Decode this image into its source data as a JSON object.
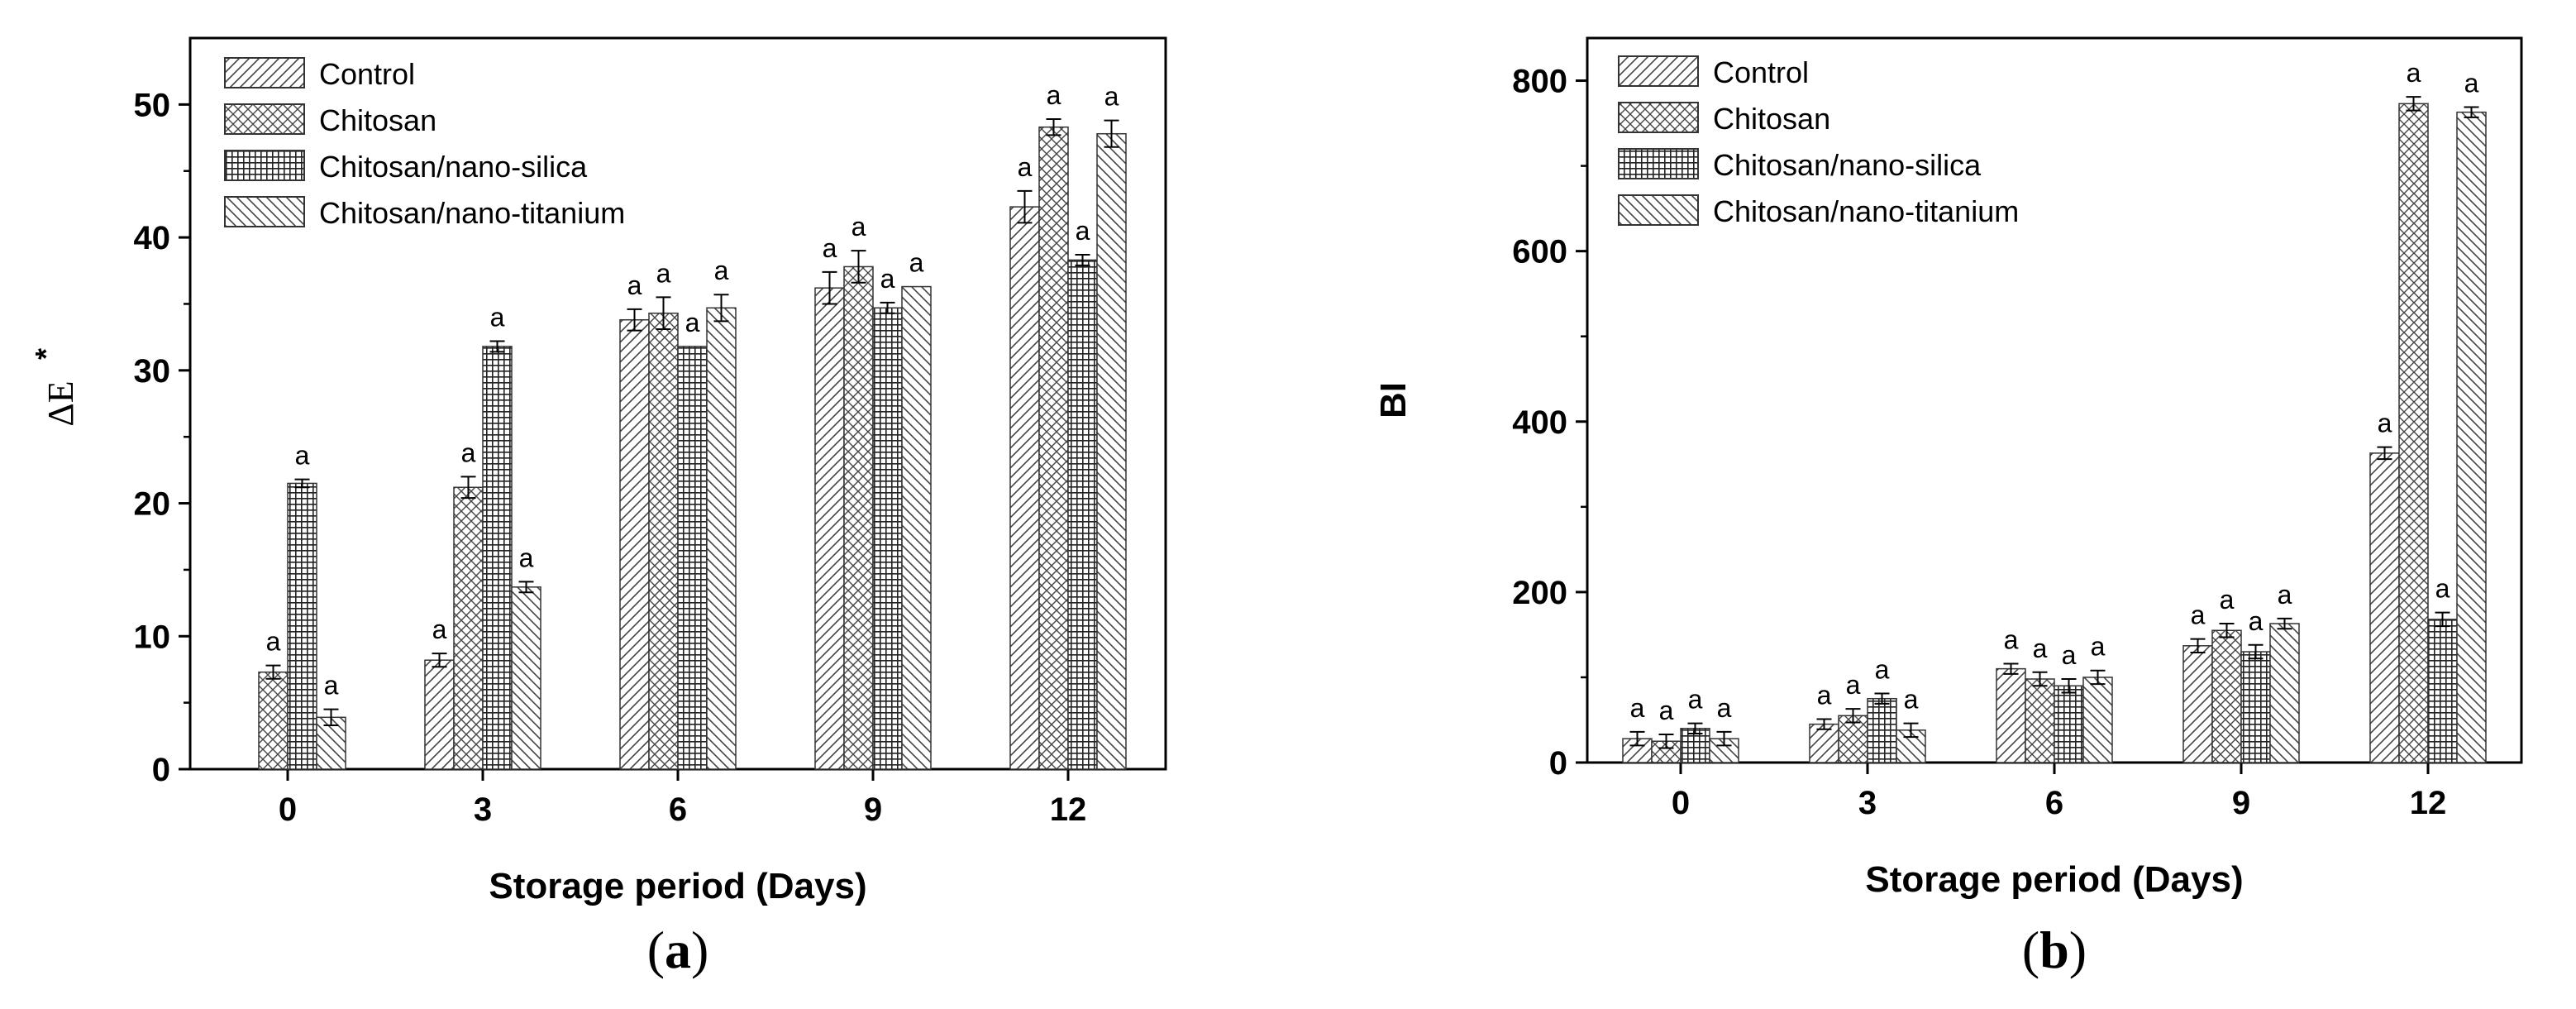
{
  "chart_data": [
    {
      "type": "bar",
      "panel": "a",
      "panel_label": "a",
      "title": "",
      "xlabel": "Storage period (Days)",
      "ylabel": "ΔE",
      "ylabel_sup": "*",
      "ylim": [
        0,
        55
      ],
      "yticks": [
        0,
        10,
        20,
        30,
        40,
        50
      ],
      "categories": [
        "0",
        "3",
        "6",
        "9",
        "12"
      ],
      "legend_position": "top-left",
      "series": [
        {
          "name": "Control",
          "pattern": "diag-right",
          "values": [
            0,
            8.2,
            33.8,
            36.2,
            42.3
          ],
          "errors": [
            0,
            0.5,
            0.8,
            1.2,
            1.2
          ],
          "labels": [
            "",
            "a",
            "a",
            "a",
            "a"
          ]
        },
        {
          "name": "Chitosan",
          "pattern": "crosshatch",
          "values": [
            7.3,
            21.2,
            34.3,
            37.8,
            48.3
          ],
          "errors": [
            0.5,
            0.8,
            1.2,
            1.2,
            0.6
          ],
          "labels": [
            "a",
            "a",
            "a",
            "a",
            "a"
          ]
        },
        {
          "name": "Chitosan/nano-silica",
          "pattern": "grid",
          "values": [
            21.5,
            31.8,
            31.8,
            34.7,
            38.3
          ],
          "errors": [
            0.3,
            0.4,
            0,
            0.4,
            0.4
          ],
          "labels": [
            "a",
            "a",
            "a",
            "a",
            "a"
          ]
        },
        {
          "name": "Chitosan/nano-titanium",
          "pattern": "diag-left",
          "values": [
            3.9,
            13.7,
            34.7,
            36.3,
            47.8
          ],
          "errors": [
            0.6,
            0.4,
            1.0,
            0,
            1.0
          ],
          "labels": [
            "a",
            "a",
            "a",
            "a",
            "a"
          ]
        }
      ]
    },
    {
      "type": "bar",
      "panel": "b",
      "panel_label": "b",
      "title": "",
      "xlabel": "Storage period (Days)",
      "ylabel": "BI",
      "ylim": [
        0,
        850
      ],
      "yticks": [
        0,
        200,
        400,
        600,
        800
      ],
      "categories": [
        "0",
        "3",
        "6",
        "9",
        "12"
      ],
      "legend_position": "top-left",
      "series": [
        {
          "name": "Control",
          "pattern": "diag-right",
          "values": [
            28,
            45,
            110,
            137,
            363
          ],
          "errors": [
            8,
            6,
            6,
            8,
            7
          ],
          "labels": [
            "a",
            "a",
            "a",
            "a",
            "a"
          ]
        },
        {
          "name": "Chitosan",
          "pattern": "crosshatch",
          "values": [
            25,
            55,
            98,
            155,
            773
          ],
          "errors": [
            8,
            8,
            8,
            8,
            8
          ],
          "labels": [
            "a",
            "a",
            "a",
            "a",
            "a"
          ]
        },
        {
          "name": "Chitosan/nano-silica",
          "pattern": "grid",
          "values": [
            40,
            75,
            90,
            130,
            168
          ],
          "errors": [
            6,
            6,
            8,
            8,
            8
          ],
          "labels": [
            "a",
            "a",
            "a",
            "a",
            "a"
          ]
        },
        {
          "name": "Chitosan/nano-titanium",
          "pattern": "diag-left",
          "values": [
            28,
            38,
            100,
            163,
            763
          ],
          "errors": [
            8,
            8,
            8,
            6,
            6
          ],
          "labels": [
            "a",
            "a",
            "a",
            "a",
            "a"
          ]
        }
      ]
    }
  ]
}
